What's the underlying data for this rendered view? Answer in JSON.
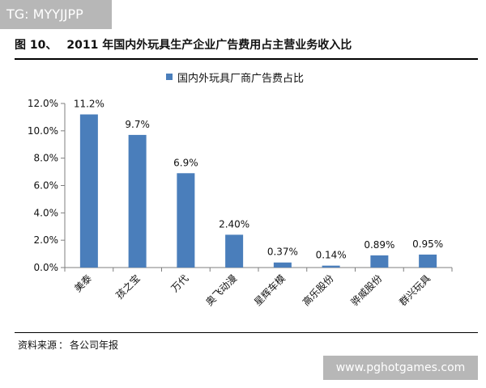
{
  "watermark_top": "TG: MYYJJPP",
  "figure": {
    "number": "图 10、",
    "title": "2011 年国内外玩具生产企业广告费用占主营业务收入比"
  },
  "source": {
    "label": "资料来源",
    "separator": "：",
    "text": "各公司年报"
  },
  "watermark_bottom": "www.pghotgames.com",
  "colors": {
    "bar": "#4a7ebb",
    "axis": "#7f7f7f",
    "watermark_bg": "#b7b7b7"
  },
  "chart_data": {
    "type": "bar",
    "title": "",
    "xlabel": "",
    "ylabel": "",
    "categories": [
      "美泰",
      "孩之宝",
      "万代",
      "奥飞动漫",
      "星辉车模",
      "高乐股份",
      "骅威股份",
      "群兴玩具"
    ],
    "series": [
      {
        "name": "国内外玩具厂商广告费占比",
        "values": [
          11.2,
          9.7,
          6.9,
          2.4,
          0.37,
          0.14,
          0.89,
          0.95
        ],
        "labels": [
          "11.2%",
          "9.7%",
          "6.9%",
          "2.40%",
          "0.37%",
          "0.14%",
          "0.89%",
          "0.95%"
        ]
      }
    ],
    "ylim": [
      0,
      12
    ],
    "yticks": [
      0,
      2,
      4,
      6,
      8,
      10,
      12
    ],
    "ytick_labels": [
      "0.0%",
      "2.0%",
      "4.0%",
      "6.0%",
      "8.0%",
      "10.0%",
      "12.0%"
    ],
    "grid": false,
    "legend_position": "top-center"
  }
}
